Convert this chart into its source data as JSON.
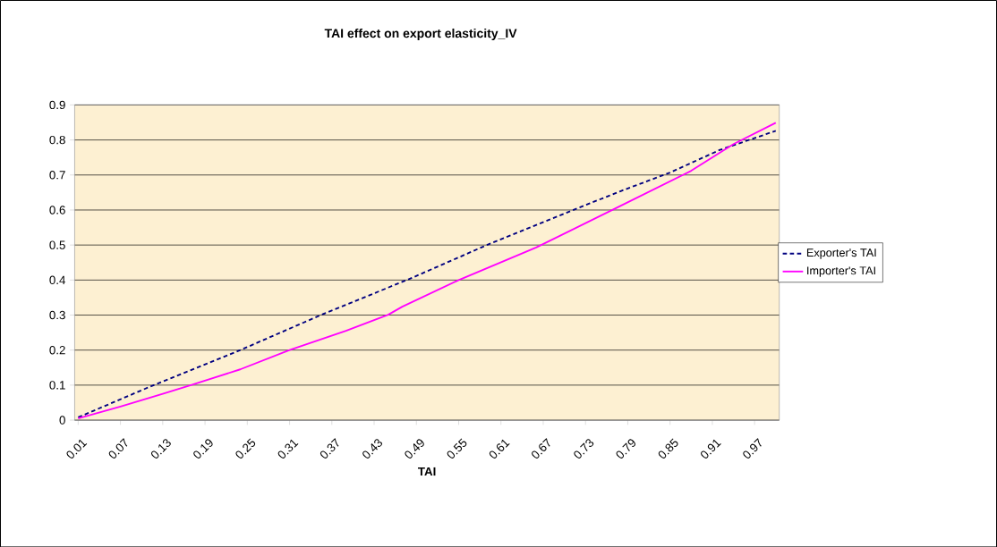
{
  "chart_data": {
    "type": "line",
    "title": "TAI effect on export elasticity_IV",
    "xlabel": "TAI",
    "xlim": [
      0.005,
      1.005
    ],
    "ylim": [
      0,
      0.9
    ],
    "xticks": [
      0.01,
      0.07,
      0.13,
      0.19,
      0.25,
      0.31,
      0.37,
      0.43,
      0.49,
      0.55,
      0.61,
      0.67,
      0.73,
      0.79,
      0.85,
      0.91,
      0.97
    ],
    "yticks": [
      0,
      0.1,
      0.2,
      0.3,
      0.4,
      0.5,
      0.6,
      0.7,
      0.8,
      0.9
    ],
    "grid": "y",
    "legend": "right",
    "marker": "none",
    "series": [
      {
        "name": "Exporter's TAI",
        "color": "#000080",
        "line_style": "dashed",
        "x": [
          0.01,
          0.11,
          0.24,
          0.36,
          0.48,
          0.59,
          0.72,
          0.78,
          0.85,
          0.92,
          1.0
        ],
        "values": [
          0.008,
          0.094,
          0.2,
          0.305,
          0.403,
          0.5,
          0.606,
          0.654,
          0.707,
          0.771,
          0.826
        ]
      },
      {
        "name": "Importer's TAI",
        "color": "#ff00ff",
        "line_style": "solid",
        "x": [
          0.01,
          0.07,
          0.13,
          0.17,
          0.24,
          0.31,
          0.39,
          0.45,
          0.47,
          0.55,
          0.66,
          0.77,
          0.88,
          0.94,
          1.0
        ],
        "values": [
          0.005,
          0.039,
          0.075,
          0.1,
          0.145,
          0.2,
          0.255,
          0.301,
          0.324,
          0.4,
          0.493,
          0.602,
          0.712,
          0.788,
          0.849
        ]
      }
    ]
  }
}
